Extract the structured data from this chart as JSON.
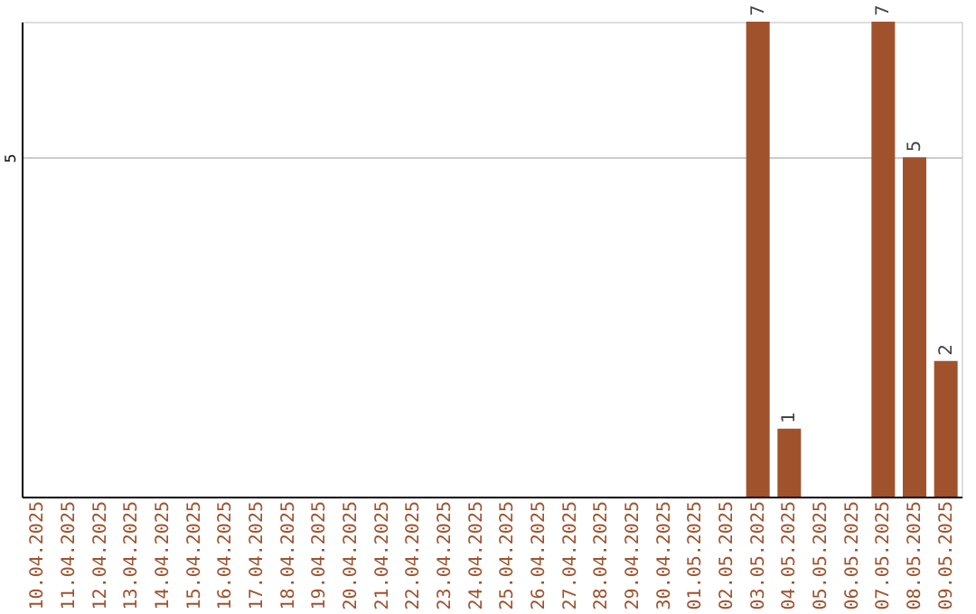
{
  "chart_data": {
    "type": "bar",
    "categories": [
      "10.04.2025",
      "11.04.2025",
      "12.04.2025",
      "13.04.2025",
      "14.04.2025",
      "15.04.2025",
      "16.04.2025",
      "17.04.2025",
      "18.04.2025",
      "19.04.2025",
      "20.04.2025",
      "21.04.2025",
      "22.04.2025",
      "23.04.2025",
      "24.04.2025",
      "25.04.2025",
      "26.04.2025",
      "27.04.2025",
      "28.04.2025",
      "29.04.2025",
      "30.04.2025",
      "01.05.2025",
      "02.05.2025",
      "03.05.2025",
      "04.05.2025",
      "05.05.2025",
      "06.05.2025",
      "07.05.2025",
      "08.05.2025",
      "09.05.2025"
    ],
    "values": [
      null,
      null,
      null,
      null,
      null,
      null,
      null,
      null,
      null,
      null,
      null,
      null,
      null,
      null,
      null,
      null,
      null,
      null,
      null,
      null,
      null,
      null,
      null,
      7,
      1,
      null,
      null,
      7,
      5,
      2
    ],
    "color": "#a0522d",
    "ylim": [
      0,
      7
    ],
    "yticks": [
      5
    ],
    "grid": "y",
    "data_labels": true
  }
}
